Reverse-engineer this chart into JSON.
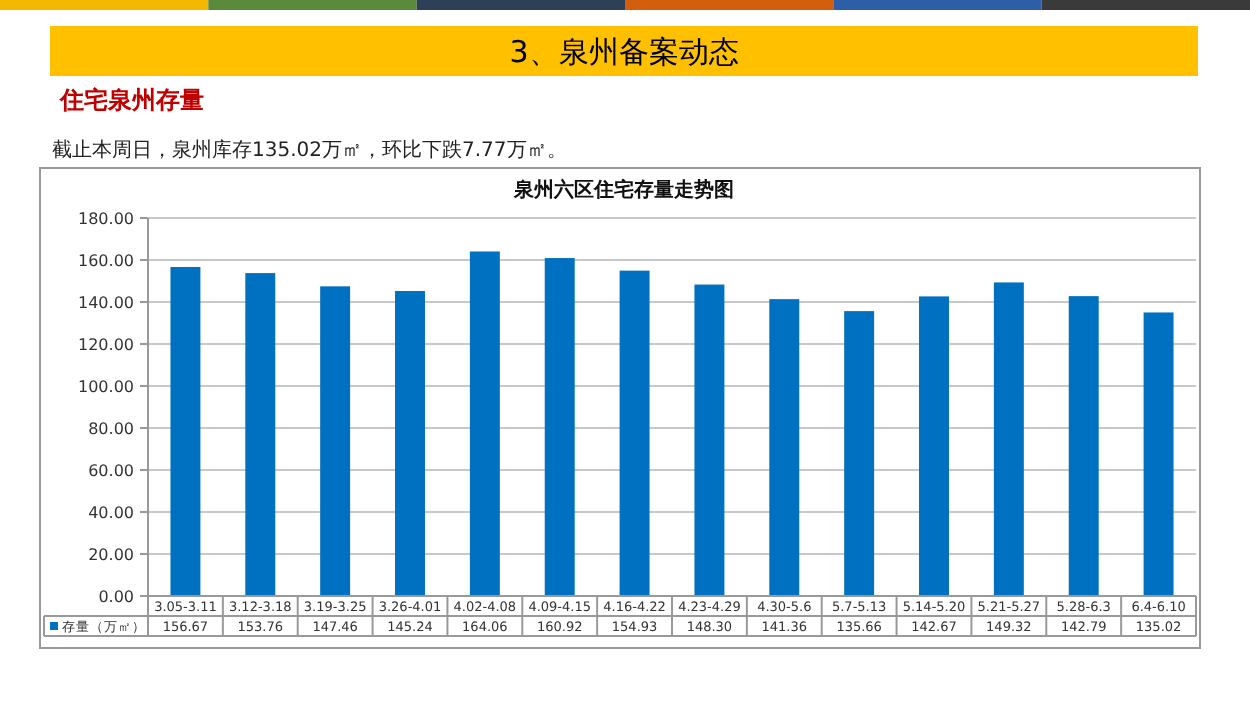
{
  "chart_data": {
    "type": "bar",
    "title": "泉州六区住宅存量走势图",
    "annotations": [
      "3、泉州备案动态",
      "住宅泉州存量",
      "截止本周日，泉州库存135.02万㎡，环比下跌7.77万㎡。"
    ],
    "categories": [
      "3.05-3.11",
      "3.12-3.18",
      "3.19-3.25",
      "3.26-4.01",
      "4.02-4.08",
      "4.09-4.15",
      "4.16-4.22",
      "4.23-4.29",
      "4.30-5.6",
      "5.7-5.13",
      "5.14-5.20",
      "5.21-5.27",
      "5.28-6.3",
      "6.4-6.10"
    ],
    "series": [
      {
        "name": "存量（万㎡）",
        "color": "#0070c0",
        "values": [
          156.67,
          153.76,
          147.46,
          145.24,
          164.06,
          160.92,
          154.93,
          148.3,
          141.36,
          135.66,
          142.67,
          149.32,
          142.79,
          135.02
        ],
        "value_labels": [
          "156.67",
          "153.76",
          "147.46",
          "145.24",
          "164.06",
          "160.92",
          "154.93",
          "148.30",
          "141.36",
          "135.66",
          "142.67",
          "149.32",
          "142.79",
          "135.02"
        ]
      }
    ],
    "ylim": [
      0,
      180
    ],
    "yticks": [
      {
        "value": 0,
        "label": "0.00"
      },
      {
        "value": 20,
        "label": "20.00"
      },
      {
        "value": 40,
        "label": "40.00"
      },
      {
        "value": 60,
        "label": "60.00"
      },
      {
        "value": 80,
        "label": "80.00"
      },
      {
        "value": 100,
        "label": "100.00"
      },
      {
        "value": 120,
        "label": "120.00"
      },
      {
        "value": 140,
        "label": "140.00"
      },
      {
        "value": 160,
        "label": "160.00"
      },
      {
        "value": 180,
        "label": "180.00"
      }
    ],
    "grid": "y",
    "data_labels": true,
    "legend": "bottom"
  }
}
